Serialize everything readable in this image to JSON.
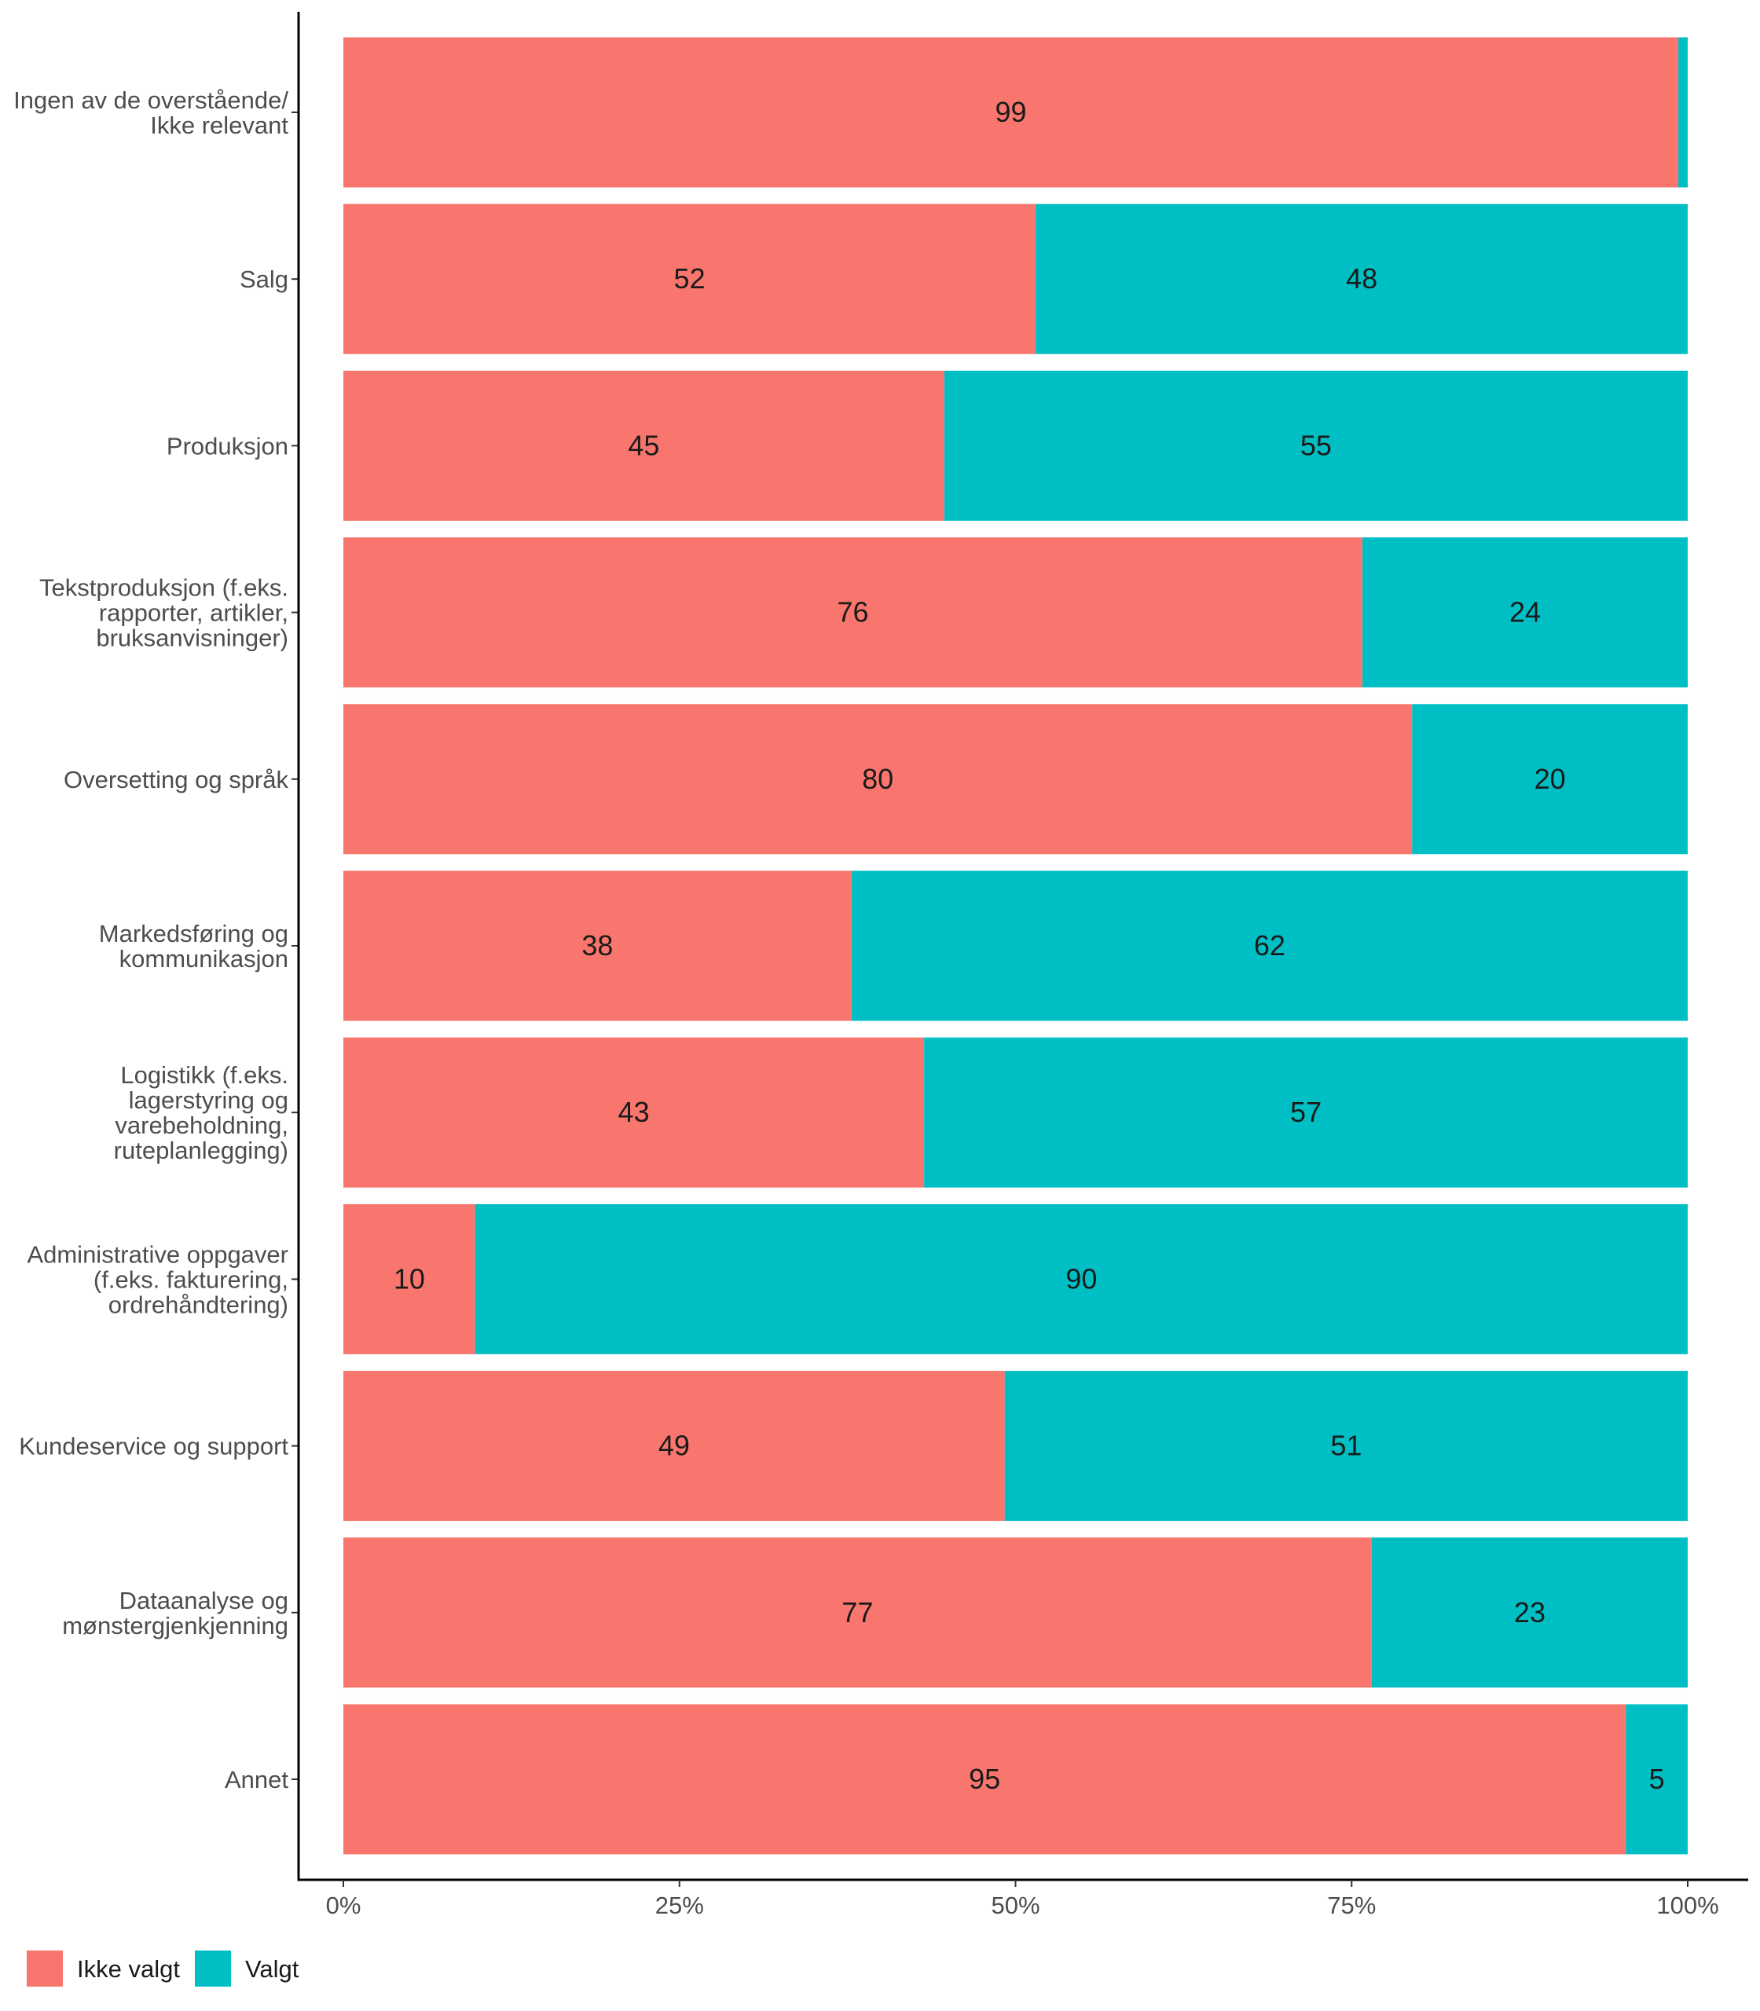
{
  "chart_data": {
    "type": "bar",
    "orientation": "horizontal",
    "stacked": true,
    "percent": true,
    "categories": [
      [
        "Ingen av de overstående/",
        "Ikke relevant"
      ],
      [
        "Salg"
      ],
      [
        "Produksjon"
      ],
      [
        "Tekstproduksjon (f.eks.",
        "rapporter, artikler,",
        "bruksanvisninger)"
      ],
      [
        "Oversetting og språk"
      ],
      [
        "Markedsføring og",
        "kommunikasjon"
      ],
      [
        "Logistikk (f.eks.",
        "lagerstyring og",
        "varebeholdning,",
        "ruteplanlegging)"
      ],
      [
        "Administrative oppgaver",
        "(f.eks. fakturering,",
        "ordrehåndtering)"
      ],
      [
        "Kundeservice og support"
      ],
      [
        "Dataanalyse og",
        "mønstergjenkjenning"
      ],
      [
        "Annet"
      ]
    ],
    "series": [
      {
        "name": "Ikke valgt",
        "color": "#F8766D",
        "values": [
          99.3,
          51.5,
          44.7,
          75.8,
          79.5,
          37.8,
          43.2,
          9.8,
          49.2,
          76.5,
          95.4
        ],
        "labels": [
          "99",
          "52",
          "45",
          "76",
          "80",
          "38",
          "43",
          "10",
          "49",
          "77",
          "95"
        ]
      },
      {
        "name": "Valgt",
        "color": "#00BFC4",
        "values": [
          0.7,
          48.5,
          55.3,
          24.2,
          20.5,
          62.2,
          56.8,
          90.2,
          50.8,
          23.5,
          4.6
        ],
        "labels": [
          "",
          "48",
          "55",
          "24",
          "20",
          "62",
          "57",
          "90",
          "51",
          "23",
          "5"
        ]
      }
    ],
    "x_ticks": [
      "0%",
      "25%",
      "50%",
      "75%",
      "100%"
    ],
    "xlim": [
      0,
      100
    ],
    "title": "",
    "xlabel": "",
    "ylabel": "",
    "grid": false,
    "legend_position": "bottom-left"
  }
}
